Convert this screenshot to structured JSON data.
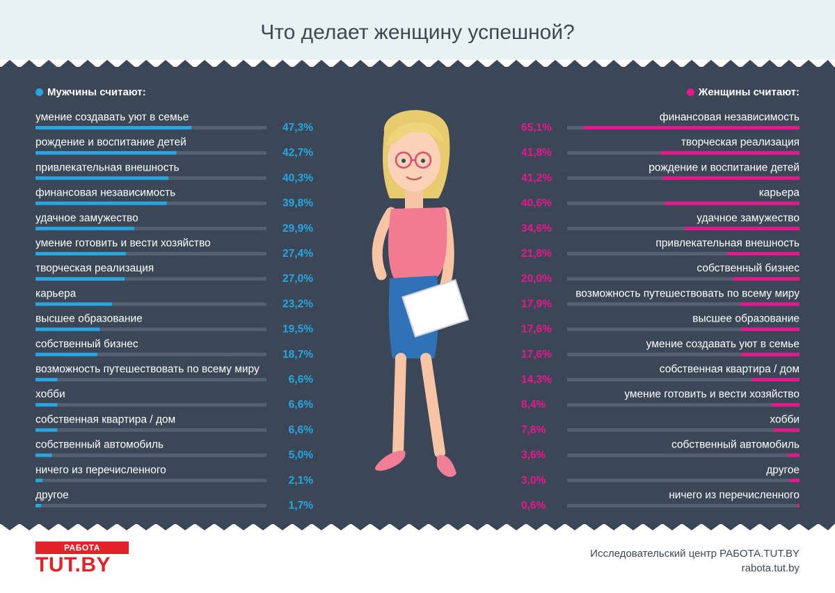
{
  "title": "Что делает женщину успешной?",
  "legend": {
    "men": "Мужчины считают:",
    "women": "Женщины считают:"
  },
  "colors": {
    "men": "#27a6e1",
    "women": "#e8178e",
    "track": "#556070",
    "panel": "#3b4757"
  },
  "chart_data": [
    {
      "type": "bar",
      "orientation": "horizontal",
      "title": "Мужчины считают:",
      "xlim": [
        0,
        100
      ],
      "categories": [
        "умение создавать уют в семье",
        "рождение и воспитание детей",
        "привлекательная внешность",
        "финансовая независимость",
        "удачное замужество",
        "умение готовить и вести хозяйство",
        "творческая реализация",
        "карьера",
        "высшее образование",
        "собственный бизнес",
        "возможность путешествовать по всему миру",
        "хобби",
        "собственная квартира / дом",
        "собственный автомобиль",
        "ничего из перечисленного",
        "другое"
      ],
      "values": [
        47.3,
        42.7,
        40.3,
        39.8,
        29.9,
        27.4,
        27.0,
        23.2,
        19.5,
        18.7,
        6.6,
        6.6,
        6.6,
        5.0,
        2.1,
        1.7
      ],
      "labels": [
        "47,3%",
        "42,7%",
        "40,3%",
        "39,8%",
        "29,9%",
        "27,4%",
        "27,0%",
        "23,2%",
        "19,5%",
        "18,7%",
        "6,6%",
        "6,6%",
        "6,6%",
        "5,0%",
        "2,1%",
        "1,7%"
      ]
    },
    {
      "type": "bar",
      "orientation": "horizontal",
      "title": "Женщины считают:",
      "xlim": [
        0,
        100
      ],
      "categories": [
        "финансовая независимость",
        "творческая реализация",
        "рождение и воспитание детей",
        "карьера",
        "удачное замужество",
        "привлекательная внешность",
        "собственный бизнес",
        "возможность путешествовать по всему миру",
        "высшее образование",
        "умение создавать уют в семье",
        "собственная квартира / дом",
        "умение готовить и вести хозяйство",
        "хобби",
        "собственный автомобиль",
        "другое",
        "ничего из перечисленного"
      ],
      "values": [
        65.1,
        41.8,
        41.2,
        40.6,
        34.6,
        21.8,
        20.0,
        17.9,
        17.6,
        17.6,
        14.3,
        8.4,
        7.8,
        3.6,
        3.0,
        0.6
      ],
      "labels": [
        "65,1%",
        "41,8%",
        "41,2%",
        "40,6%",
        "34,6%",
        "21,8%",
        "20,0%",
        "17,9%",
        "17,6%",
        "17,6%",
        "14,3%",
        "8,4%",
        "7,8%",
        "3,6%",
        "3,0%",
        "0,6%"
      ]
    }
  ],
  "logo": {
    "top": "РАБОТА",
    "main": "TUT.BY"
  },
  "footer": {
    "source": "Исследовательский центр РАБОТА.TUT.BY",
    "url": "rabota.tut.by"
  }
}
